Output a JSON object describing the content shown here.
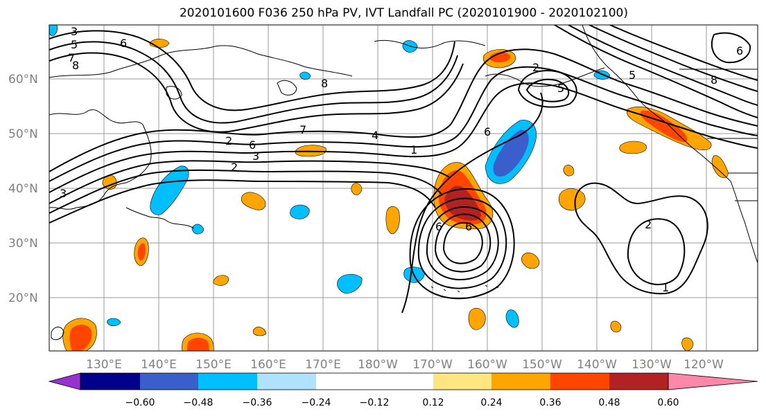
{
  "title": "2020101600 F036 250 hPa PV, IVT Landfall PC (2020101900 - 2020102100)",
  "lat_labels": [
    "60°N",
    "50°N",
    "40°N",
    "30°N",
    "20°N"
  ],
  "lon_labels": [
    "130°E",
    "140°E",
    "150°E",
    "160°E",
    "170°E",
    "180°W",
    "170°W",
    "160°W",
    "150°W",
    "140°W",
    "130°W",
    "120°W"
  ],
  "colorbar": {
    "ticks": [
      "−0.60",
      "−0.48",
      "−0.36",
      "−0.24",
      "−0.12",
      "0.12",
      "0.24",
      "0.36",
      "0.48",
      "0.60"
    ],
    "colors": [
      "#9932cc",
      "#00008b",
      "#3a5fcd",
      "#00bfff",
      "#b0e2ff",
      "#ffffff",
      "#ffe680",
      "#ffa500",
      "#ff4500",
      "#b22222",
      "#ff88aa"
    ]
  },
  "contour_labels": [
    "3",
    "5",
    "7",
    "8",
    "6",
    "8",
    "2",
    "6",
    "7",
    "4",
    "1",
    "2",
    "3",
    "3",
    "6",
    "6",
    "6",
    "2",
    "1",
    "2",
    "5",
    "8",
    "6",
    "5"
  ]
}
